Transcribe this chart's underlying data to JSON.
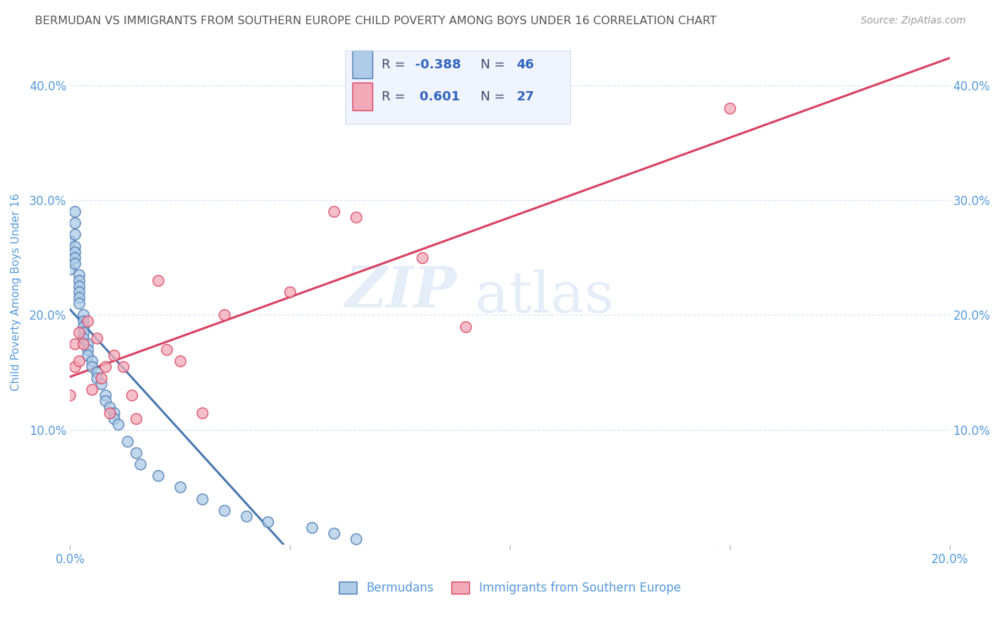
{
  "title": "BERMUDAN VS IMMIGRANTS FROM SOUTHERN EUROPE CHILD POVERTY AMONG BOYS UNDER 16 CORRELATION CHART",
  "source": "Source: ZipAtlas.com",
  "ylabel": "Child Poverty Among Boys Under 16",
  "legend_r1": "R = -0.388",
  "legend_n1": "N = 46",
  "legend_r2": "R =  0.601",
  "legend_n2": "N = 27",
  "legend_label1": "Bermudans",
  "legend_label2": "Immigrants from Southern Europe",
  "watermark_zip": "ZIP",
  "watermark_atlas": "atlas",
  "blue_scatter_x": [
    0.0,
    0.0,
    0.001,
    0.001,
    0.001,
    0.001,
    0.001,
    0.001,
    0.001,
    0.002,
    0.002,
    0.002,
    0.002,
    0.002,
    0.002,
    0.003,
    0.003,
    0.003,
    0.003,
    0.003,
    0.004,
    0.004,
    0.004,
    0.005,
    0.005,
    0.006,
    0.006,
    0.007,
    0.008,
    0.008,
    0.009,
    0.01,
    0.01,
    0.011,
    0.013,
    0.015,
    0.016,
    0.02,
    0.025,
    0.03,
    0.035,
    0.04,
    0.045,
    0.055,
    0.06,
    0.065
  ],
  "blue_scatter_y": [
    0.265,
    0.24,
    0.29,
    0.28,
    0.27,
    0.26,
    0.255,
    0.25,
    0.245,
    0.235,
    0.23,
    0.225,
    0.22,
    0.215,
    0.21,
    0.2,
    0.195,
    0.19,
    0.185,
    0.18,
    0.175,
    0.17,
    0.165,
    0.16,
    0.155,
    0.15,
    0.145,
    0.14,
    0.13,
    0.125,
    0.12,
    0.115,
    0.11,
    0.105,
    0.09,
    0.08,
    0.07,
    0.06,
    0.05,
    0.04,
    0.03,
    0.025,
    0.02,
    0.015,
    0.01,
    0.005
  ],
  "pink_scatter_x": [
    0.0,
    0.001,
    0.001,
    0.002,
    0.002,
    0.003,
    0.004,
    0.005,
    0.006,
    0.007,
    0.008,
    0.009,
    0.01,
    0.012,
    0.014,
    0.015,
    0.02,
    0.022,
    0.025,
    0.03,
    0.035,
    0.05,
    0.06,
    0.065,
    0.08,
    0.09,
    0.15
  ],
  "pink_scatter_y": [
    0.13,
    0.175,
    0.155,
    0.185,
    0.16,
    0.175,
    0.195,
    0.135,
    0.18,
    0.145,
    0.155,
    0.115,
    0.165,
    0.155,
    0.13,
    0.11,
    0.23,
    0.17,
    0.16,
    0.115,
    0.2,
    0.22,
    0.29,
    0.285,
    0.25,
    0.19,
    0.38
  ],
  "blue_color": "#aecce8",
  "pink_color": "#f2aab8",
  "blue_line_color": "#4878b0",
  "pink_line_color": "#d94060",
  "title_color": "#555555",
  "source_color": "#999999",
  "axis_label_color": "#5599dd",
  "tick_color": "#5599dd",
  "legend_bg_color": "#f0f4ff",
  "legend_border_color": "#ccddee",
  "grid_color": "#ccddee",
  "xlim": [
    0.0,
    0.2
  ],
  "ylim": [
    0.0,
    0.44
  ],
  "yticks": [
    0.0,
    0.1,
    0.2,
    0.3,
    0.4
  ],
  "ytick_labels_left": [
    "",
    "10.0%",
    "20.0%",
    "30.0%",
    "40.0%"
  ],
  "ytick_labels_right": [
    "",
    "10.0%",
    "20.0%",
    "30.0%",
    "40.0%"
  ],
  "xticks": [
    0.0,
    0.05,
    0.1,
    0.15,
    0.2
  ],
  "xtick_labels": [
    "0.0%",
    "",
    "",
    "",
    "20.0%"
  ]
}
